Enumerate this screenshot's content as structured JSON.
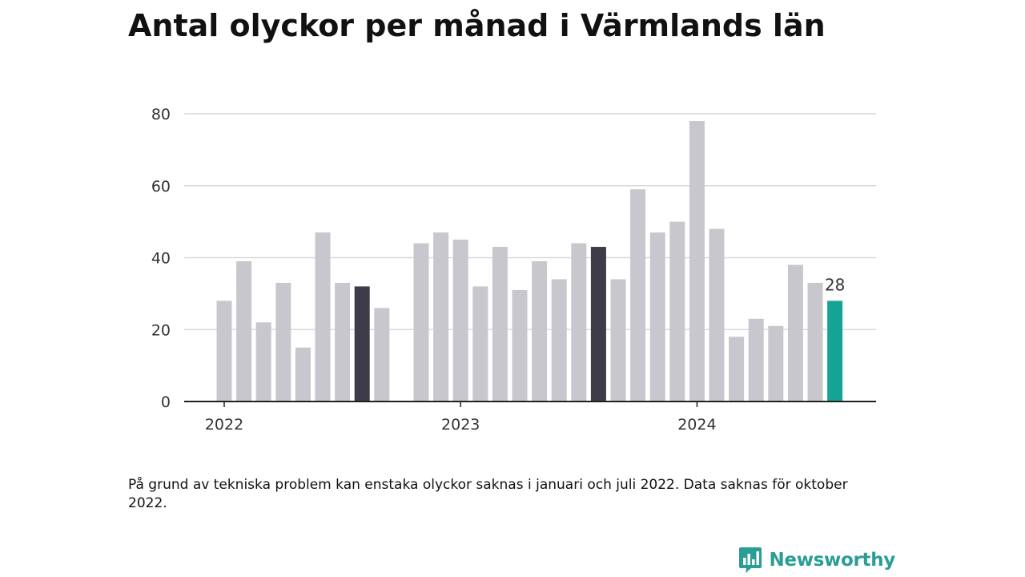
{
  "title": "Antal olyckor per månad i Värmlands län",
  "note": "På grund av tekniska problem kan enstaka olyckor saknas i januari och juli 2022. Data saknas för oktober 2022.",
  "brand": {
    "name": "Newsworthy",
    "icon": "newsworthy-logo-icon"
  },
  "colors": {
    "bar": "#c8c7ce",
    "highlight": "#3d3c48",
    "latest": "#15a396",
    "grid": "#d9d9d9",
    "axis": "#222222",
    "brand": "#2a9d95"
  },
  "chart_data": {
    "type": "bar",
    "title": "Antal olyckor per månad i Värmlands län",
    "xlabel": "",
    "ylabel": "",
    "ylim": [
      0,
      80
    ],
    "yticks": [
      0,
      20,
      40,
      60,
      80
    ],
    "grid": true,
    "x_tick_labels": [
      {
        "label": "2022",
        "month": "2022-01"
      },
      {
        "label": "2023",
        "month": "2023-01"
      },
      {
        "label": "2024",
        "month": "2024-01"
      }
    ],
    "months": [
      "2022-01",
      "2022-02",
      "2022-03",
      "2022-04",
      "2022-05",
      "2022-06",
      "2022-07",
      "2022-08",
      "2022-09",
      "2022-10",
      "2022-11",
      "2022-12",
      "2023-01",
      "2023-02",
      "2023-03",
      "2023-04",
      "2023-05",
      "2023-06",
      "2023-07",
      "2023-08",
      "2023-09",
      "2023-10",
      "2023-11",
      "2023-12",
      "2024-01",
      "2024-02",
      "2024-03",
      "2024-04",
      "2024-05",
      "2024-06",
      "2024-07",
      "2024-08"
    ],
    "values": [
      28,
      39,
      22,
      33,
      15,
      47,
      33,
      32,
      26,
      null,
      44,
      47,
      45,
      32,
      43,
      31,
      39,
      34,
      44,
      43,
      34,
      59,
      47,
      50,
      78,
      48,
      18,
      23,
      21,
      38,
      33,
      28
    ],
    "highlighted": [
      "2022-08",
      "2023-08"
    ],
    "latest": "2024-08",
    "data_labels": [
      {
        "month": "2024-08",
        "text": "28"
      }
    ]
  }
}
